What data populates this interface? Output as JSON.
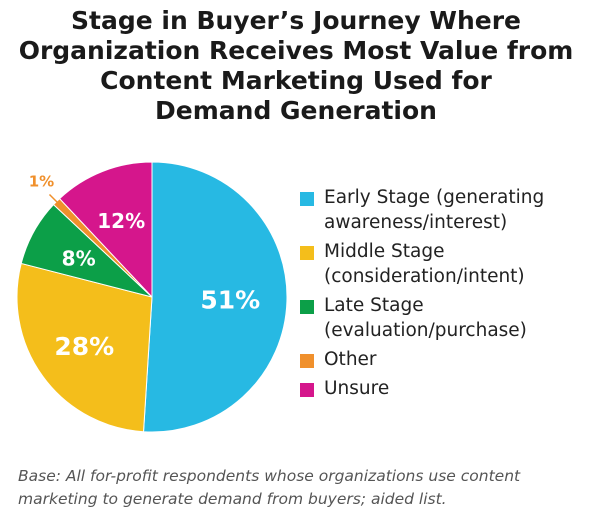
{
  "title_lines": [
    "Stage in Buyer’s Journey Where",
    "Organization Receives Most Value from",
    "Content Marketing Used for",
    "Demand Generation"
  ],
  "chart_data": {
    "type": "pie",
    "title": "Stage in Buyer’s Journey Where Organization Receives Most Value from Content Marketing Used for Demand Generation",
    "unit": "%",
    "slices": [
      {
        "label": "Early Stage (generating awareness/interest)",
        "value": 51,
        "display": "51%",
        "color": "#27b9e3"
      },
      {
        "label": "Middle Stage (consideration/intent)",
        "value": 28,
        "display": "28%",
        "color": "#f4be1b"
      },
      {
        "label": "Late Stage (evaluation/purchase)",
        "value": 8,
        "display": "8%",
        "color": "#0c9f48"
      },
      {
        "label": "Other",
        "value": 1,
        "display": "1%",
        "color": "#f0902c"
      },
      {
        "label": "Unsure",
        "value": 12,
        "display": "12%",
        "color": "#d5168c"
      }
    ],
    "legend_position": "right"
  },
  "legend": [
    {
      "lines": [
        "Early Stage (generating",
        "awareness/interest)"
      ],
      "color": "#27b9e3"
    },
    {
      "lines": [
        "Middle Stage",
        "(consideration/intent)"
      ],
      "color": "#f4be1b"
    },
    {
      "lines": [
        "Late Stage",
        "(evaluation/purchase)"
      ],
      "color": "#0c9f48"
    },
    {
      "lines": [
        "Other"
      ],
      "color": "#f0902c"
    },
    {
      "lines": [
        "Unsure"
      ],
      "color": "#d5168c"
    }
  ],
  "footnote_lines": [
    "Base: All for-profit respondents whose organizations use content",
    "marketing to generate demand from buyers; aided list."
  ]
}
